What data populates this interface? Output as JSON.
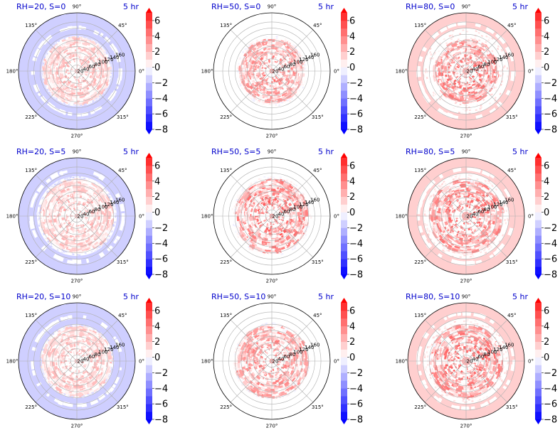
{
  "chart_data": {
    "type": "heatmap",
    "projection": "polar",
    "layout": {
      "rows": 3,
      "cols": 3
    },
    "time_label": "5 hr",
    "angle_ticks": [
      "90°",
      "45°",
      "0°",
      "315°",
      "270°",
      "225°",
      "180°",
      "135°"
    ],
    "angle_tick_degrees": [
      90,
      45,
      0,
      315,
      270,
      225,
      180,
      135
    ],
    "radial_ticks": [
      20,
      40,
      60,
      80,
      100,
      120,
      140,
      160
    ],
    "radial_tick_labels": [
      "20",
      "40",
      "60",
      "80",
      "100",
      "120",
      "140",
      "160"
    ],
    "rmax": 190,
    "colorbar": {
      "ticks": [
        6,
        4,
        2,
        0,
        -2,
        -4,
        -6,
        -8
      ],
      "tick_labels": [
        "6",
        "4",
        "2",
        "0",
        "−2",
        "−4",
        "−6",
        "−8"
      ],
      "range": [
        -8,
        7
      ],
      "levels": 15,
      "colormap": "bwr",
      "extend": "both",
      "color_low": "#0000ff",
      "color_mid": "#ffffff",
      "color_high": "#ff0000"
    },
    "panels": [
      {
        "title": "RH=20, S=0",
        "rh": 20,
        "s": 0,
        "background_value": -1.5,
        "background_radius": [
          0,
          190
        ],
        "outer_band_value": -1.2,
        "outer_band_radius": [
          115,
          190
        ],
        "core_value": 1.5,
        "core_radius": [
          10,
          110
        ],
        "center_value": 2.0,
        "center_radius": 8
      },
      {
        "title": "RH=50, S=0",
        "rh": 50,
        "s": 0,
        "background_value": 0,
        "background_radius": [
          0,
          190
        ],
        "outer_band_value": 0,
        "outer_band_radius": [
          115,
          190
        ],
        "core_value": 2.5,
        "core_radius": [
          10,
          105
        ],
        "center_value": 3.5,
        "center_radius": 8
      },
      {
        "title": "RH=80, S=0",
        "rh": 80,
        "s": 0,
        "background_value": 1.5,
        "background_radius": [
          0,
          190
        ],
        "outer_band_value": 1.3,
        "outer_band_radius": [
          140,
          190
        ],
        "core_value": 3.0,
        "core_radius": [
          10,
          105
        ],
        "center_value": 3.0,
        "center_radius": 12
      },
      {
        "title": "RH=20, S=5",
        "rh": 20,
        "s": 5,
        "background_value": -1.5,
        "background_radius": [
          0,
          190
        ],
        "outer_band_value": -1.2,
        "outer_band_radius": [
          130,
          190
        ],
        "core_value": 1.5,
        "core_radius": [
          10,
          120
        ],
        "center_value": 2.0,
        "center_radius": 8
      },
      {
        "title": "RH=50, S=5",
        "rh": 50,
        "s": 5,
        "background_value": 0,
        "background_radius": [
          0,
          190
        ],
        "outer_band_value": 0,
        "outer_band_radius": [
          130,
          190
        ],
        "core_value": 3.0,
        "core_radius": [
          10,
          120
        ],
        "center_value": 3.5,
        "center_radius": 8
      },
      {
        "title": "RH=80, S=5",
        "rh": 80,
        "s": 5,
        "background_value": 1.5,
        "background_radius": [
          0,
          190
        ],
        "outer_band_value": 1.3,
        "outer_band_radius": [
          140,
          190
        ],
        "core_value": 3.0,
        "core_radius": [
          10,
          120
        ],
        "center_value": 3.0,
        "center_radius": 14
      },
      {
        "title": "RH=20, S=10",
        "rh": 20,
        "s": 10,
        "background_value": -1.5,
        "background_radius": [
          0,
          190
        ],
        "outer_band_value": -1.2,
        "outer_band_radius": [
          120,
          190
        ],
        "core_value": 1.5,
        "core_radius": [
          10,
          115
        ],
        "center_value": 2.0,
        "center_radius": 8
      },
      {
        "title": "RH=50, S=10",
        "rh": 50,
        "s": 10,
        "background_value": 0,
        "background_radius": [
          0,
          190
        ],
        "outer_band_value": 0,
        "outer_band_radius": [
          125,
          190
        ],
        "core_value": 2.5,
        "core_radius": [
          10,
          120
        ],
        "center_value": 3.5,
        "center_radius": 8
      },
      {
        "title": "RH=80, S=10",
        "rh": 80,
        "s": 10,
        "background_value": 1.5,
        "background_radius": [
          0,
          190
        ],
        "outer_band_value": 1.3,
        "outer_band_radius": [
          140,
          190
        ],
        "core_value": 3.0,
        "core_radius": [
          10,
          120
        ],
        "center_value": 3.0,
        "center_radius": 14
      }
    ]
  }
}
